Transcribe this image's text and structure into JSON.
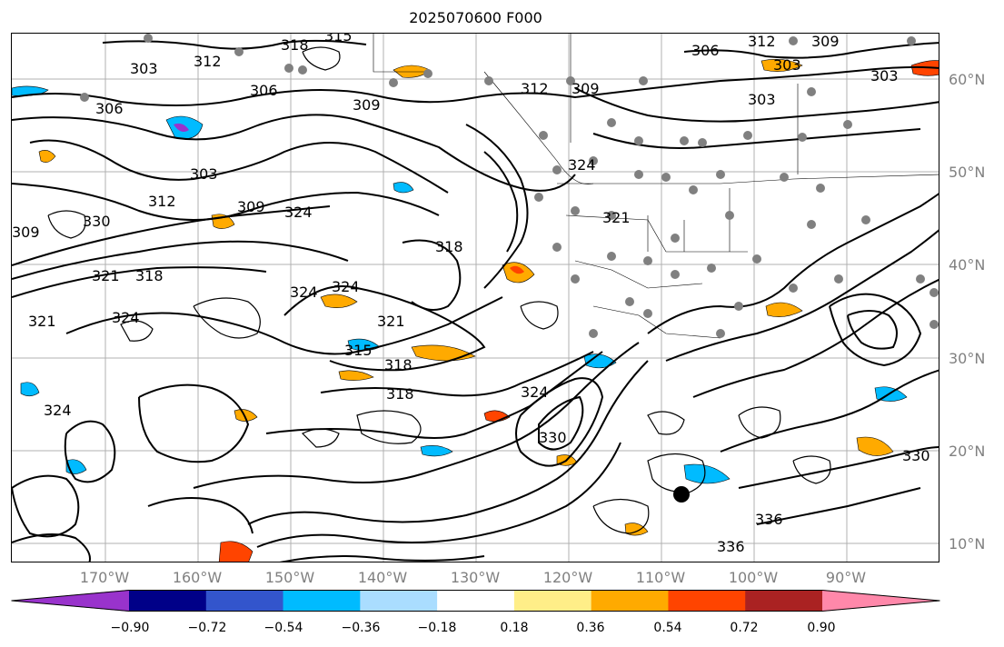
{
  "title": "2025070600 F000",
  "map": {
    "lat_labels": [
      "60°N",
      "50°N",
      "40°N",
      "30°N",
      "20°N",
      "10°N"
    ],
    "lon_labels": [
      "170°W",
      "160°W",
      "150°W",
      "140°W",
      "130°W",
      "120°W",
      "110°W",
      "100°W",
      "90°W"
    ],
    "contour_labels": [
      "318",
      "315",
      "312",
      "306",
      "312",
      "309",
      "306",
      "312",
      "309",
      "309",
      "303",
      "303",
      "303",
      "303",
      "306",
      "309",
      "303",
      "309",
      "312",
      "330",
      "324",
      "321",
      "318",
      "324",
      "324",
      "321",
      "315",
      "318",
      "318",
      "324",
      "321",
      "324",
      "321",
      "324",
      "318",
      "330",
      "336",
      "336",
      "330",
      "324"
    ],
    "grid_color": "#b0b0b0",
    "contour_color": "#000000"
  },
  "colorbar": {
    "colors": [
      "#9933cc",
      "#000088",
      "#3355cc",
      "#00bbff",
      "#aaddff",
      "#ffffff",
      "#ffee88",
      "#ffaa00",
      "#ff4400",
      "#aa2222",
      "#ff88aa"
    ],
    "ticks": [
      "−0.90",
      "−0.72",
      "−0.54",
      "−0.36",
      "−0.18",
      "0.18",
      "0.36",
      "0.54",
      "0.72",
      "0.90"
    ]
  }
}
